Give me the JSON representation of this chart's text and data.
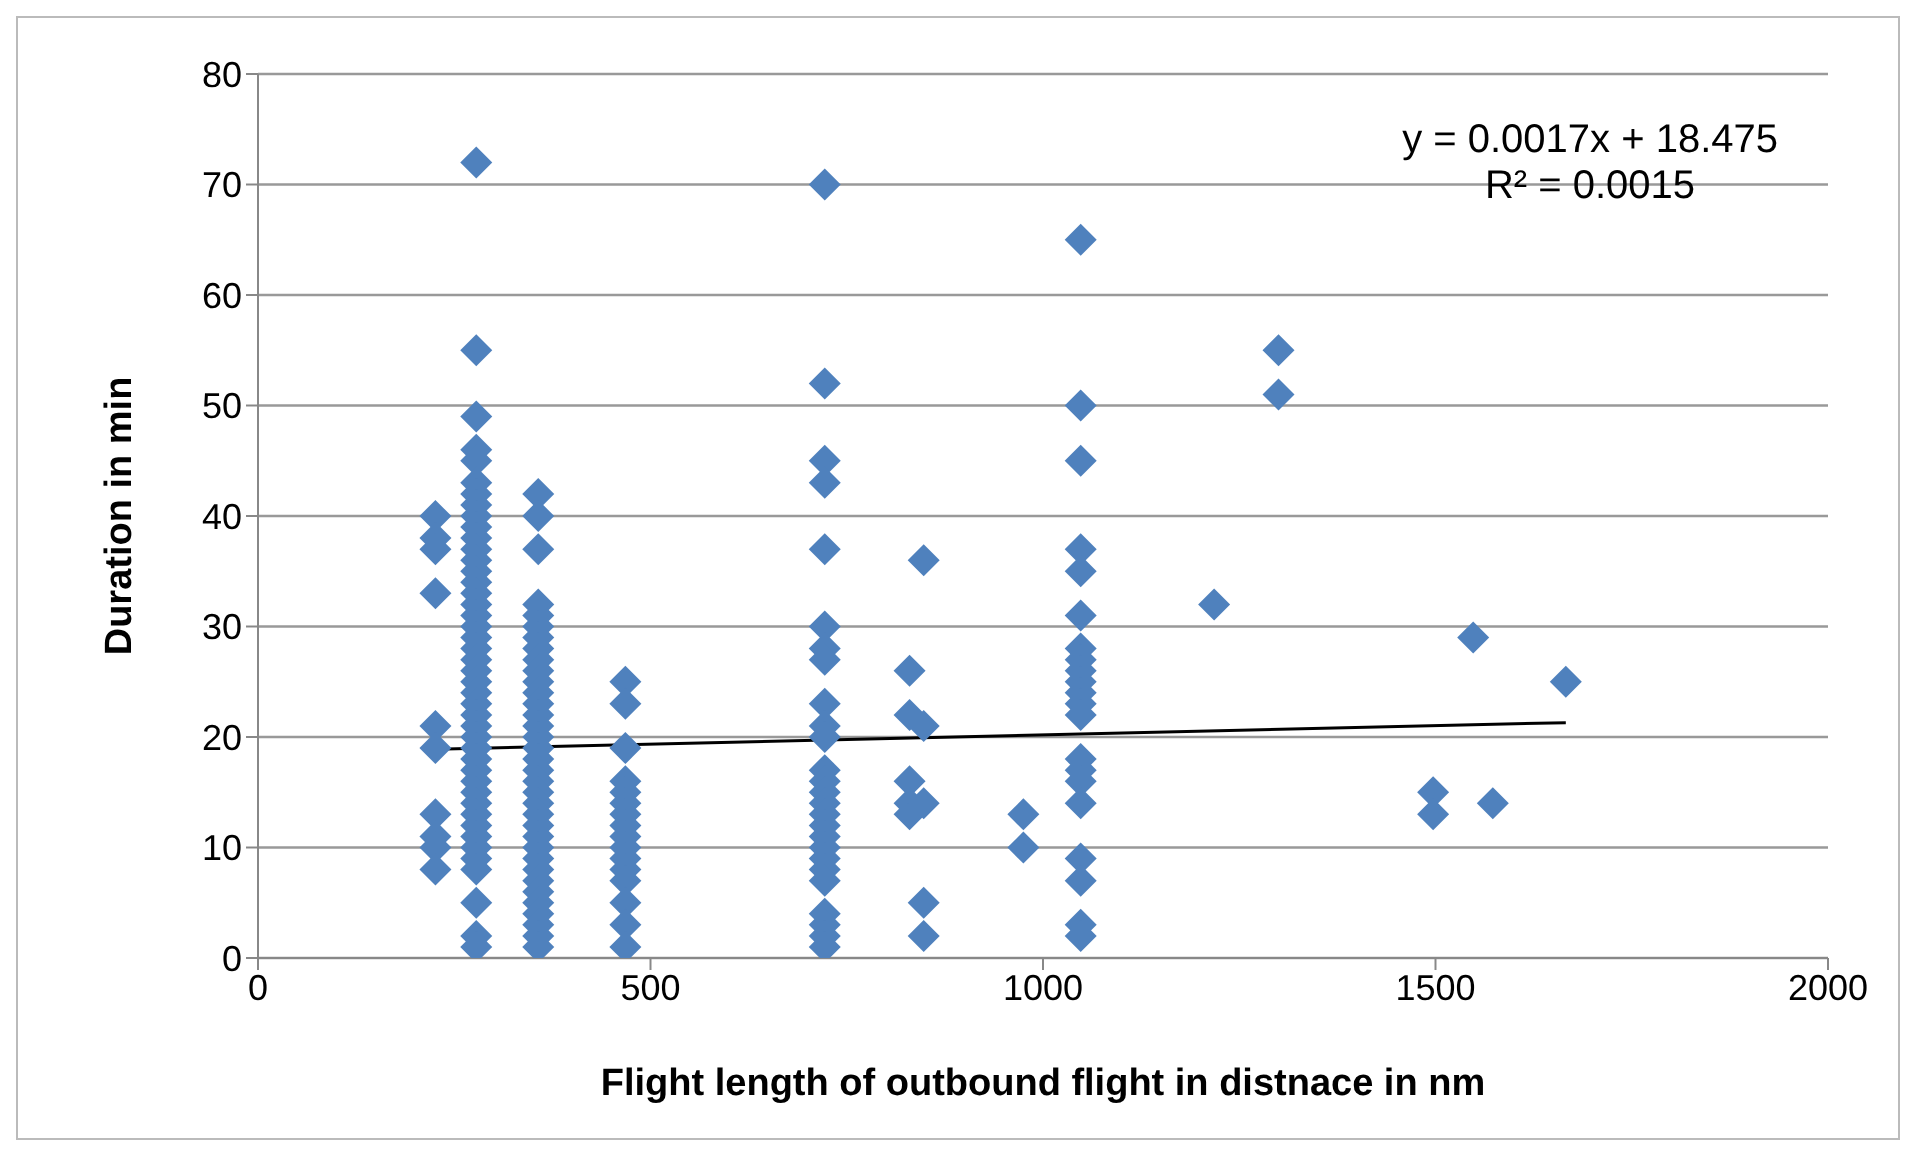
{
  "chart_data": {
    "type": "scatter",
    "xlabel": "Flight length of outbound flight in distnace in nm",
    "ylabel": "Duration in min",
    "xlim": [
      0,
      2000
    ],
    "xticks": [
      0,
      500,
      1000,
      1500,
      2000
    ],
    "ylim": [
      0,
      80
    ],
    "yticks": [
      0,
      10,
      20,
      30,
      40,
      50,
      60,
      70,
      80
    ],
    "grid": "y",
    "annotations": [
      "y = 0.0017x + 18.475",
      "R² = 0.0015"
    ],
    "series": [
      {
        "color": "#4f81bd",
        "marker": "diamond",
        "x": [
          226,
          226,
          226,
          226,
          226,
          226,
          226,
          226,
          226,
          226,
          278,
          278,
          278,
          278,
          278,
          278,
          278,
          278,
          278,
          278,
          278,
          278,
          278,
          278,
          278,
          278,
          278,
          278,
          278,
          278,
          278,
          278,
          278,
          278,
          278,
          278,
          278,
          278,
          278,
          278,
          278,
          278,
          278,
          278,
          278,
          278,
          278,
          278,
          278,
          278,
          278,
          278,
          278,
          278,
          357,
          357,
          357,
          357,
          357,
          357,
          357,
          357,
          357,
          357,
          357,
          357,
          357,
          357,
          357,
          357,
          357,
          357,
          357,
          357,
          357,
          357,
          357,
          357,
          357,
          357,
          357,
          357,
          357,
          357,
          357,
          357,
          357,
          357,
          357,
          468,
          468,
          468,
          468,
          468,
          468,
          468,
          468,
          468,
          468,
          468,
          468,
          468,
          468,
          468,
          468,
          722,
          722,
          722,
          722,
          722,
          722,
          722,
          722,
          722,
          722,
          722,
          722,
          722,
          722,
          722,
          722,
          722,
          722,
          722,
          722,
          722,
          722,
          722,
          722,
          722,
          722,
          830,
          830,
          830,
          830,
          830,
          848,
          848,
          848,
          848,
          848,
          975,
          975,
          1048,
          1048,
          1048,
          1048,
          1048,
          1048,
          1048,
          1048,
          1048,
          1048,
          1048,
          1048,
          1048,
          1048,
          1048,
          1048,
          1048,
          1048,
          1048,
          1048,
          1048,
          1218,
          1300,
          1300,
          1497,
          1497,
          1548,
          1573,
          1666
        ],
        "values": [
          40,
          38,
          37,
          33,
          21,
          19,
          13,
          11,
          10,
          8,
          72,
          55,
          49,
          46,
          45,
          43,
          42,
          41,
          40,
          39,
          38,
          37,
          36,
          35,
          34,
          33,
          32,
          31,
          30,
          29,
          28,
          27,
          26,
          25,
          24,
          23,
          22,
          21,
          20,
          19,
          18,
          17,
          16,
          15,
          14,
          13,
          12,
          11,
          10,
          9,
          8,
          5,
          2,
          1,
          42,
          40,
          37,
          32,
          31,
          30,
          29,
          28,
          27,
          26,
          25,
          24,
          23,
          22,
          21,
          20,
          19,
          18,
          17,
          16,
          15,
          14,
          13,
          12,
          11,
          10,
          9,
          8,
          7,
          6,
          5,
          4,
          3,
          2,
          1,
          25,
          23,
          19,
          16,
          15,
          14,
          13,
          12,
          11,
          10,
          9,
          8,
          7,
          5,
          3,
          1,
          70,
          52,
          45,
          43,
          37,
          30,
          28,
          27,
          23,
          21,
          20,
          17,
          16,
          15,
          14,
          13,
          12,
          11,
          10,
          9,
          8,
          7,
          4,
          3,
          2,
          1,
          26,
          22,
          16,
          14,
          13,
          36,
          21,
          14,
          5,
          2,
          13,
          10,
          65,
          50,
          45,
          37,
          35,
          31,
          28,
          27,
          26,
          25,
          24,
          23,
          22,
          18,
          17,
          16,
          14,
          9,
          7,
          3,
          2,
          32,
          55,
          51,
          15,
          13,
          29,
          14,
          25
        ]
      },
      {
        "type": "line",
        "color": "#000000",
        "x": [
          226,
          1666
        ],
        "values": [
          18.9,
          21.3
        ]
      }
    ]
  }
}
